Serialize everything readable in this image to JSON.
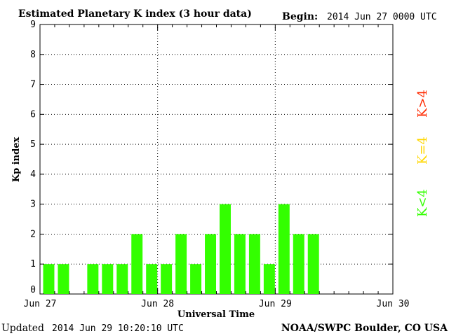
{
  "header": {
    "title": "Estimated Planetary K index (3 hour data)",
    "begin_label": "Begin:",
    "begin_value": "2014 Jun 27 0000 UTC"
  },
  "footer": {
    "updated_label": "Updated",
    "updated_value": "2014 Jun 29 10:20:10 UTC",
    "source": "NOAA/SWPC Boulder, CO USA"
  },
  "legend": [
    {
      "label": "K<4",
      "color": "#33ff00"
    },
    {
      "label": "K=4",
      "color": "#ffd700"
    },
    {
      "label": "K>4",
      "color": "#ff2a00"
    }
  ],
  "chart_data": {
    "type": "bar",
    "title": "Estimated Planetary K index (3 hour data)",
    "xlabel": "Universal Time",
    "ylabel": "Kp index",
    "ylim": [
      0,
      9
    ],
    "yticks": [
      "0",
      "1",
      "2",
      "3",
      "4",
      "5",
      "6",
      "7",
      "8",
      "9"
    ],
    "xticks": [
      "Jun 27",
      "Jun 28",
      "Jun 29",
      "Jun 30"
    ],
    "x_unit": "3-hour interval starting 2014 Jun 27 00 UTC",
    "x": [
      "Jun 27 00",
      "Jun 27 03",
      "Jun 27 06",
      "Jun 27 09",
      "Jun 27 12",
      "Jun 27 15",
      "Jun 27 18",
      "Jun 27 21",
      "Jun 28 00",
      "Jun 28 03",
      "Jun 28 06",
      "Jun 28 09",
      "Jun 28 12",
      "Jun 28 15",
      "Jun 28 18",
      "Jun 28 21",
      "Jun 29 00",
      "Jun 29 03",
      "Jun 29 06"
    ],
    "values": [
      1,
      1,
      0,
      1,
      1,
      1,
      2,
      1,
      1,
      2,
      1,
      2,
      3,
      2,
      2,
      1,
      3,
      2,
      2
    ],
    "bar_color": "#33ff00",
    "grid": true,
    "legend_placement": "right"
  }
}
